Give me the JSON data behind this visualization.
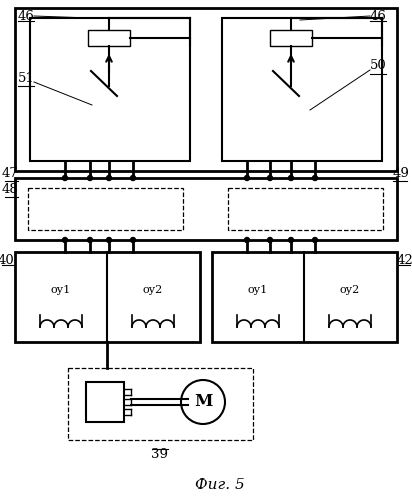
{
  "bg_color": "#ffffff",
  "lc": "#000000",
  "caption": "Фиг. 5",
  "labels": {
    "46": "46",
    "51": "51",
    "50": "50",
    "47": "47",
    "48": "48",
    "49": "49",
    "40": "40",
    "42": "42",
    "39": "39",
    "ou1": "оу1",
    "ou2": "оу2"
  }
}
